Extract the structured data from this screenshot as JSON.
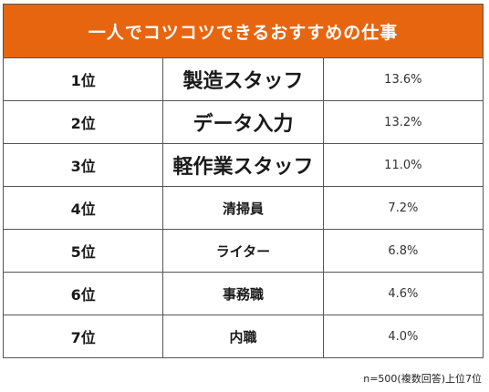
{
  "table": {
    "title": "一人でコツコツできるおすすめの仕事",
    "rows": [
      {
        "rank": "1位",
        "name": "製造スタッフ",
        "percent": "13.6%"
      },
      {
        "rank": "2位",
        "name": "データ入力",
        "percent": "13.2%"
      },
      {
        "rank": "3位",
        "name": "軽作業スタッフ",
        "percent": "11.0%"
      },
      {
        "rank": "4位",
        "name": "清掃員",
        "percent": "7.2%"
      },
      {
        "rank": "5位",
        "name": "ライター",
        "percent": "6.8%"
      },
      {
        "rank": "6位",
        "name": "事務職",
        "percent": "4.6%"
      },
      {
        "rank": "7位",
        "name": "内職",
        "percent": "4.0%"
      }
    ]
  },
  "note": "n=500(複数回答)上位7位",
  "colors": {
    "header_bg": "#e8650f",
    "header_text": "#ffffff",
    "border": "#555555"
  }
}
